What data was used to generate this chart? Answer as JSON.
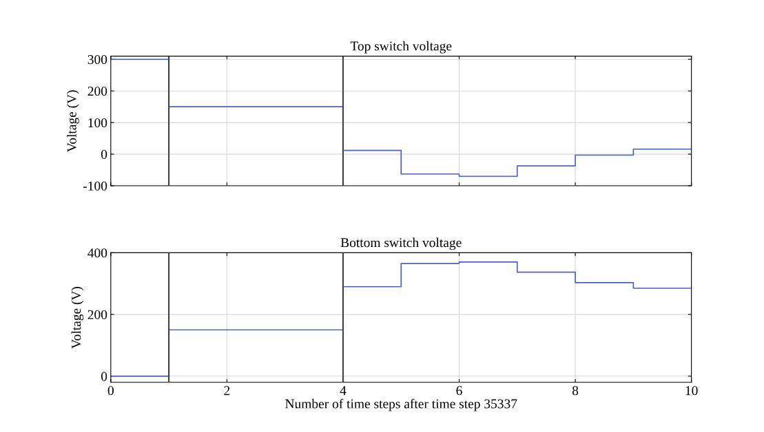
{
  "chart_data": [
    {
      "type": "step",
      "title": "Top switch voltage",
      "ylabel": "Voltage (V)",
      "x": [
        0,
        1,
        4,
        5,
        6,
        7,
        8,
        9,
        10
      ],
      "series": [
        {
          "color": "#4a5fd6",
          "values": [
            300,
            150,
            12,
            -63,
            -70,
            -37,
            -3,
            16,
            16
          ]
        }
      ],
      "xlim": [
        0,
        10
      ],
      "xticks": [
        0,
        2,
        4,
        6,
        8,
        10
      ],
      "ylim": [
        -100,
        310
      ],
      "yticks": [
        -100,
        0,
        100,
        200,
        300
      ],
      "grid": true,
      "tick_labels": "y",
      "ref_lines": [
        {
          "axis": "x",
          "value": 1,
          "color": "#404040"
        },
        {
          "axis": "x",
          "value": 4,
          "color": "#404040"
        }
      ]
    },
    {
      "type": "step",
      "title": "Bottom switch voltage",
      "ylabel": "Voltage (V)",
      "xlabel": "Number of time steps after time step 35337",
      "x": [
        0,
        1,
        4,
        5,
        6,
        7,
        8,
        9,
        10
      ],
      "series": [
        {
          "color": "#4a5fd6",
          "values": [
            0,
            150,
            290,
            365,
            370,
            337,
            303,
            285,
            285
          ]
        }
      ],
      "xlim": [
        0,
        10
      ],
      "xticks": [
        0,
        2,
        4,
        6,
        8,
        10
      ],
      "ylim": [
        -20,
        400
      ],
      "yticks": [
        0,
        200,
        400
      ],
      "grid": true,
      "ref_lines": [
        {
          "axis": "x",
          "value": 1,
          "color": "#404040"
        },
        {
          "axis": "x",
          "value": 4,
          "color": "#404040"
        }
      ]
    }
  ]
}
